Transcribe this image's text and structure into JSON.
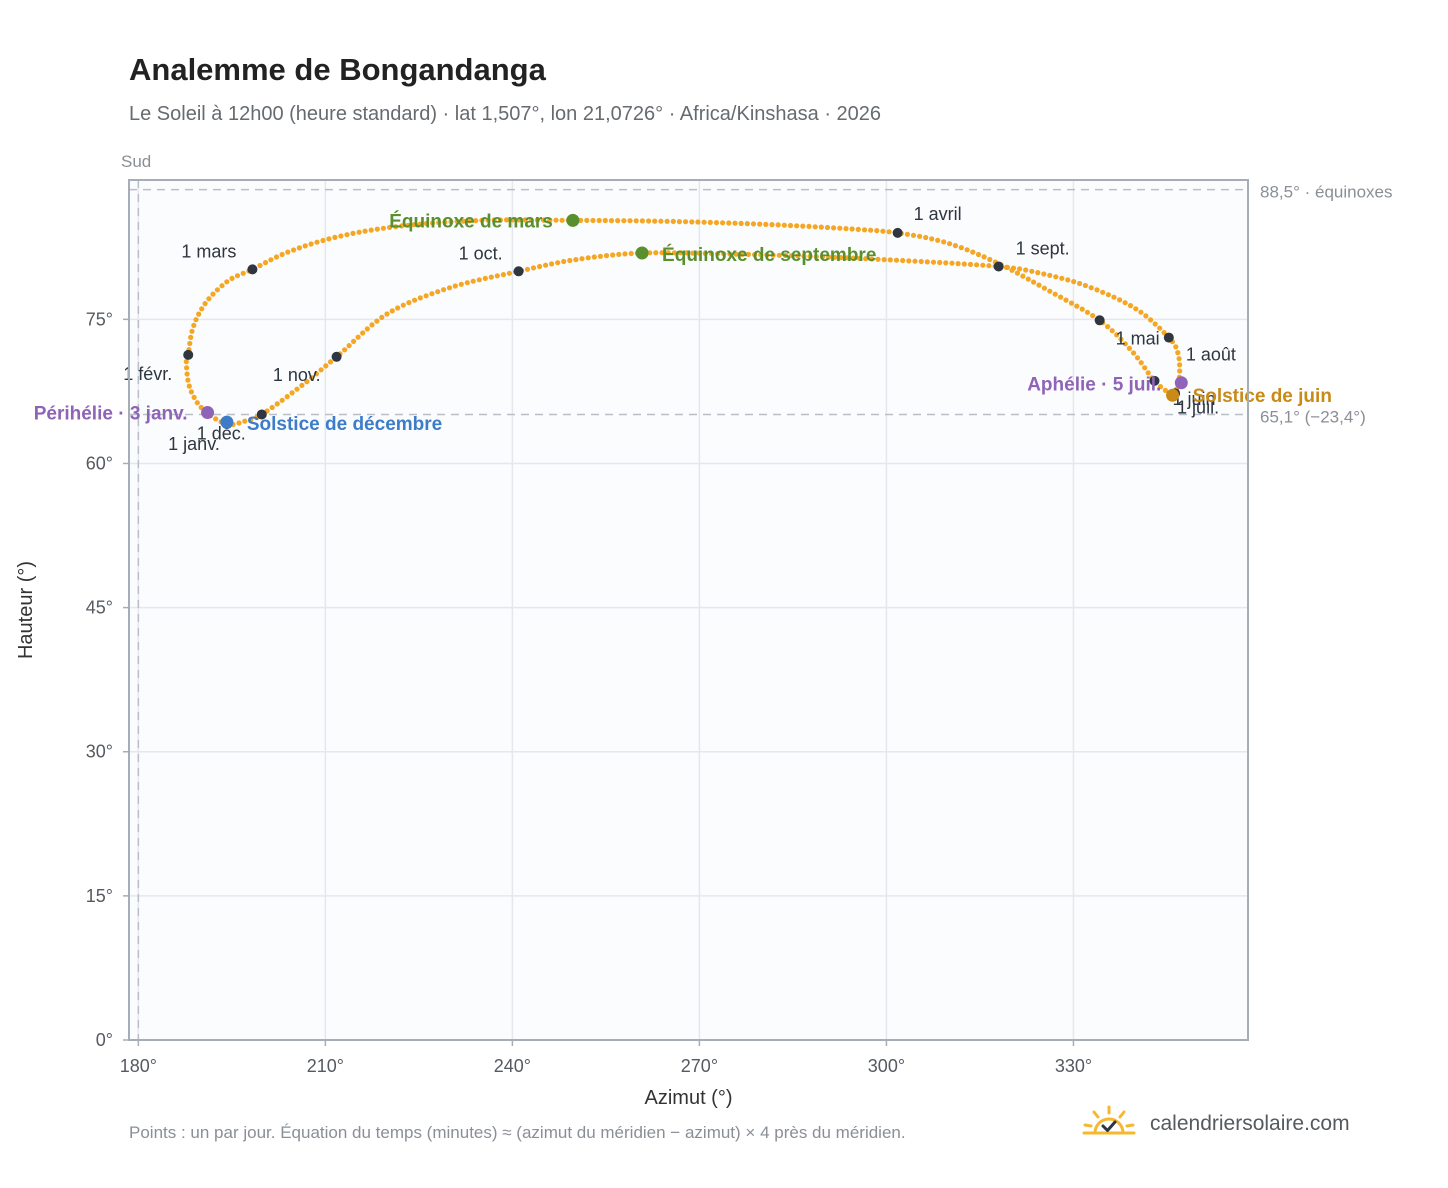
{
  "header": {
    "title": "Analemme de Bongandanga",
    "subtitle": "Le Soleil à 12h00 (heure standard) · lat 1,507°, lon 21,0726° · Africa/Kinshasa · 2026"
  },
  "footer": {
    "note": "Points : un par jour. Équation du temps (minutes) ≈ (azimut du méridien − azimut) × 4 près du méridien.",
    "brand": "calendriersolaire.com",
    "brand_icon": "sun-check-icon"
  },
  "colors": {
    "curve": "#f5a623",
    "month_marker": "#2f3640",
    "equinox": "#5a8f2e",
    "december_solstice": "#3d7cc9",
    "june_solstice": "#c98a16",
    "apsis": "#8e63b8",
    "reference_line": "#b8bfc6"
  },
  "chart_data": {
    "type": "scatter",
    "xlabel": "Azimut (°)",
    "ylabel": "Hauteur (°)",
    "xlim": [
      178.5,
      358
    ],
    "ylim": [
      0,
      89.5
    ],
    "xticks": [
      180,
      210,
      240,
      270,
      300,
      330
    ],
    "xtick_labels": [
      "180°",
      "210°",
      "240°",
      "270°",
      "300°",
      "330°"
    ],
    "yticks": [
      0,
      15,
      30,
      45,
      60,
      75
    ],
    "ytick_labels": [
      "0°",
      "15°",
      "30°",
      "45°",
      "60°",
      "75°"
    ],
    "grid": true,
    "direction_label": "Sud",
    "reference_lines": [
      {
        "axis": "y",
        "value": 88.5,
        "label": "88,5° · équinoxes"
      },
      {
        "axis": "y",
        "value": 65.1,
        "label": "65,1° (−23,4°)"
      },
      {
        "axis": "x",
        "value": 180
      }
    ],
    "months": [
      {
        "label": "1 janv.",
        "az": 194.2,
        "alt": 64.1
      },
      {
        "label": "1 févr.",
        "az": 188.0,
        "alt": 71.3
      },
      {
        "label": "1 mars",
        "az": 198.3,
        "alt": 80.2
      },
      {
        "label": "1 avril",
        "az": 301.8,
        "alt": 84.0
      },
      {
        "label": "1 mai",
        "az": 334.2,
        "alt": 74.9
      },
      {
        "label": "1 juin",
        "az": 343.0,
        "alt": 68.6
      },
      {
        "label": "1 juil.",
        "az": 346.3,
        "alt": 67.3
      },
      {
        "label": "1 août",
        "az": 345.3,
        "alt": 73.1
      },
      {
        "label": "1 sept.",
        "az": 318.0,
        "alt": 80.5
      },
      {
        "label": "1 oct.",
        "az": 241.0,
        "alt": 80.0
      },
      {
        "label": "1 nov.",
        "az": 211.8,
        "alt": 71.1
      },
      {
        "label": "1 déc.",
        "az": 199.8,
        "alt": 65.1
      }
    ],
    "events": [
      {
        "label": "Équinoxe de mars",
        "az": 249.7,
        "alt": 85.3,
        "color": "equinox"
      },
      {
        "label": "Équinoxe de septembre",
        "az": 260.8,
        "alt": 81.9,
        "color": "equinox"
      },
      {
        "label": "Solstice de décembre",
        "az": 194.2,
        "alt": 64.3,
        "color": "december_solstice"
      },
      {
        "label": "Solstice de juin",
        "az": 345.9,
        "alt": 67.1,
        "color": "june_solstice"
      },
      {
        "label": "Périhélie · 3 janv.",
        "az": 191.1,
        "alt": 65.3,
        "color": "apsis"
      },
      {
        "label": "Aphélie · 5 juil.",
        "az": 347.3,
        "alt": 68.4,
        "color": "apsis"
      }
    ],
    "loop_path": [
      [
        194.2,
        64.1
      ],
      [
        190.4,
        65.6
      ],
      [
        188.3,
        67.8
      ],
      [
        187.7,
        70.3
      ],
      [
        188.0,
        71.3
      ],
      [
        188.8,
        74.2
      ],
      [
        190.9,
        76.8
      ],
      [
        194.4,
        79.0
      ],
      [
        198.3,
        80.2
      ],
      [
        204,
        82.0
      ],
      [
        212,
        83.6
      ],
      [
        222,
        84.7
      ],
      [
        235,
        85.3
      ],
      [
        249.7,
        85.3
      ],
      [
        265,
        85.2
      ],
      [
        280,
        84.9
      ],
      [
        292,
        84.5
      ],
      [
        301.8,
        84.0
      ],
      [
        310,
        82.9
      ],
      [
        318,
        80.8
      ],
      [
        326,
        78.0
      ],
      [
        334.2,
        74.9
      ],
      [
        339.5,
        71.6
      ],
      [
        343.0,
        68.6
      ],
      [
        345.9,
        67.1
      ],
      [
        346.3,
        67.3
      ],
      [
        347.0,
        69.0
      ],
      [
        346.8,
        71.4
      ],
      [
        345.3,
        73.1
      ],
      [
        340,
        76.1
      ],
      [
        332,
        78.5
      ],
      [
        324,
        79.9
      ],
      [
        318,
        80.5
      ],
      [
        306,
        81.0
      ],
      [
        290,
        81.5
      ],
      [
        275,
        81.8
      ],
      [
        260.8,
        81.9
      ],
      [
        250,
        81.2
      ],
      [
        241.0,
        80.0
      ],
      [
        230,
        78.3
      ],
      [
        220,
        75.6
      ],
      [
        211.8,
        71.1
      ],
      [
        206,
        68.0
      ],
      [
        199.8,
        65.1
      ],
      [
        197,
        64.4
      ],
      [
        194.2,
        64.1
      ]
    ]
  }
}
